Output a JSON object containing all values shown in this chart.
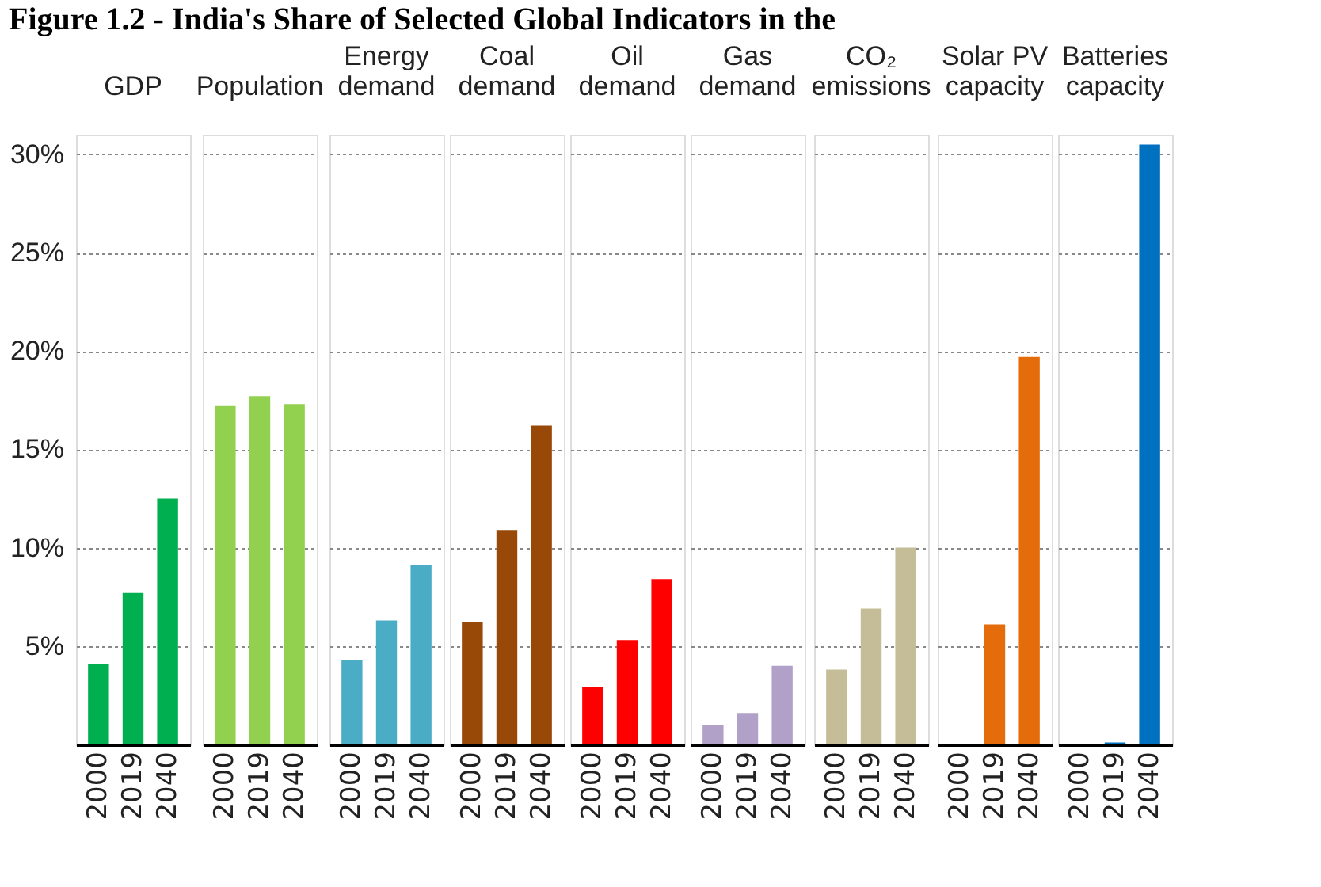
{
  "chart_data": [
    {
      "type": "bar",
      "title": "GDP",
      "annotations": [
        "Figure 1.2 - India's Share of Selected Global Indicators in the"
      ],
      "categories": [
        "2000",
        "2019",
        "2040"
      ],
      "values": [
        4.1,
        7.7,
        12.5
      ],
      "color": "#00b050",
      "ylim": [
        0,
        31
      ],
      "yticks": [
        {
          "value": 5,
          "label": "5%"
        },
        {
          "value": 10,
          "label": "10%"
        },
        {
          "value": 15,
          "label": "15%"
        },
        {
          "value": 20,
          "label": "20%"
        },
        {
          "value": 25,
          "label": "25%"
        },
        {
          "value": 30,
          "label": "30%"
        }
      ],
      "grid": "y"
    },
    {
      "type": "bar",
      "title": "Population",
      "categories": [
        "2000",
        "2019",
        "2040"
      ],
      "values": [
        17.2,
        17.7,
        17.3
      ],
      "color": "#92d050",
      "ylim": [
        0,
        31
      ],
      "yticks": [
        5,
        10,
        15,
        20,
        25,
        30
      ],
      "grid": "y",
      "tick_labels": "x"
    },
    {
      "type": "bar",
      "title": "Energy\ndemand",
      "categories": [
        "2000",
        "2019",
        "2040"
      ],
      "values": [
        4.3,
        6.3,
        9.1
      ],
      "color": "#4bacc6",
      "ylim": [
        0,
        31
      ],
      "yticks": [
        5,
        10,
        15,
        20,
        25,
        30
      ],
      "grid": "y",
      "tick_labels": "x"
    },
    {
      "type": "bar",
      "title": "Coal\ndemand",
      "categories": [
        "2000",
        "2019",
        "2040"
      ],
      "values": [
        6.2,
        10.9,
        16.2
      ],
      "color": "#984807",
      "ylim": [
        0,
        31
      ],
      "yticks": [
        5,
        10,
        15,
        20,
        25,
        30
      ],
      "grid": "y",
      "tick_labels": "x"
    },
    {
      "type": "bar",
      "title": "Oil\ndemand",
      "categories": [
        "2000",
        "2019",
        "2040"
      ],
      "values": [
        2.9,
        5.3,
        8.4
      ],
      "color": "#ff0000",
      "ylim": [
        0,
        31
      ],
      "yticks": [
        5,
        10,
        15,
        20,
        25,
        30
      ],
      "grid": "y",
      "tick_labels": "x"
    },
    {
      "type": "bar",
      "title": "Gas\ndemand",
      "categories": [
        "2000",
        "2019",
        "2040"
      ],
      "values": [
        1.0,
        1.6,
        4.0
      ],
      "color": "#b1a0c7",
      "ylim": [
        0,
        31
      ],
      "yticks": [
        5,
        10,
        15,
        20,
        25,
        30
      ],
      "grid": "y",
      "tick_labels": "x"
    },
    {
      "type": "bar",
      "title": "CO₂\nemissions",
      "categories": [
        "2000",
        "2019",
        "2040"
      ],
      "values": [
        3.8,
        6.9,
        10.0
      ],
      "color": "#c4bd97",
      "ylim": [
        0,
        31
      ],
      "yticks": [
        5,
        10,
        15,
        20,
        25,
        30
      ],
      "grid": "y",
      "tick_labels": "x"
    },
    {
      "type": "bar",
      "title": "Solar PV\ncapacity",
      "categories": [
        "2000",
        "2019",
        "2040"
      ],
      "values": [
        0,
        6.1,
        19.7
      ],
      "color": "#e46c0a",
      "ylim": [
        0,
        31
      ],
      "yticks": [
        5,
        10,
        15,
        20,
        25,
        30
      ],
      "grid": "y",
      "tick_labels": "x"
    },
    {
      "type": "bar",
      "title": "Batteries\ncapacity",
      "categories": [
        "2000",
        "2019",
        "2040"
      ],
      "values": [
        0,
        0.1,
        30.5
      ],
      "color": "#0070c0",
      "ylim": [
        0,
        31
      ],
      "yticks": [
        5,
        10,
        15,
        20,
        25,
        30
      ],
      "grid": "y",
      "tick_labels": "x"
    }
  ]
}
